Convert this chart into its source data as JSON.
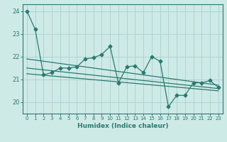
{
  "xlabel": "Humidex (Indice chaleur)",
  "ylabel": "",
  "bg_color": "#ceeae7",
  "grid_color": "#aed4d0",
  "line_color": "#2a7a70",
  "xlim": [
    -0.5,
    23.5
  ],
  "ylim": [
    19.5,
    24.3
  ],
  "yticks": [
    20,
    21,
    22,
    23,
    24
  ],
  "xticks": [
    0,
    1,
    2,
    3,
    4,
    5,
    6,
    7,
    8,
    9,
    10,
    11,
    12,
    13,
    14,
    15,
    16,
    17,
    18,
    19,
    20,
    21,
    22,
    23
  ],
  "series_y": [
    24.0,
    23.2,
    21.2,
    21.3,
    21.5,
    21.5,
    21.55,
    21.9,
    21.95,
    22.1,
    22.45,
    20.85,
    21.55,
    21.6,
    21.3,
    22.0,
    21.8,
    19.8,
    20.3,
    20.3,
    20.85,
    20.85,
    20.95,
    20.65
  ],
  "regression_lines": [
    {
      "x0": 0,
      "y0": 21.9,
      "x1": 23,
      "y1": 20.75
    },
    {
      "x0": 0,
      "y0": 21.5,
      "x1": 23,
      "y1": 20.6
    },
    {
      "x0": 0,
      "y0": 21.25,
      "x1": 23,
      "y1": 20.5
    }
  ],
  "xlabel_fontsize": 6.5,
  "xlabel_fontweight": "bold",
  "xtick_fontsize": 5.0,
  "ytick_fontsize": 6.0,
  "linewidth": 0.9,
  "markersize": 2.5
}
